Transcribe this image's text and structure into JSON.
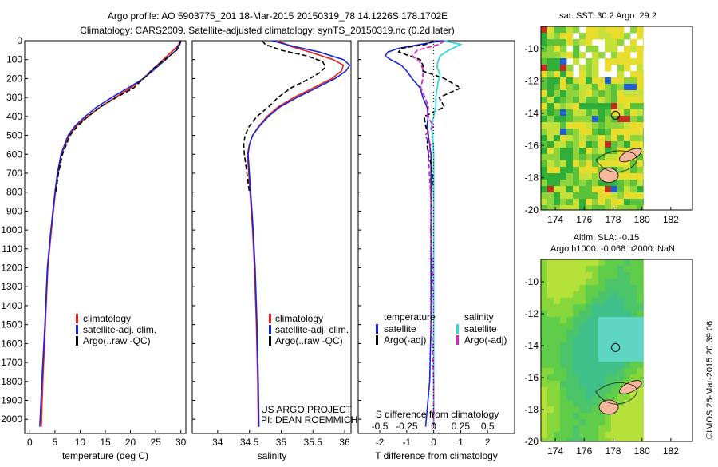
{
  "title_line1": "Argo profile: AO 5903775_201 18-Mar-2015 20150319_78 14.1226S 178.1702E",
  "title_line2": "Climatology: CARS2009. Satellite-adjusted climatology: synTS_20150319.nc (0.2d later)",
  "colors": {
    "climatology": "#e8201c",
    "satellite": "#1726d6",
    "argo": "#000000",
    "salinity_sat": "#33d6e0",
    "salinity_argo": "#d426c8"
  },
  "chart_data": [
    {
      "type": "line",
      "name": "temperature",
      "xlabel": "temperature (deg C)",
      "ylabel": "",
      "xlim": [
        -1,
        31
      ],
      "xticks": [
        0,
        5,
        10,
        15,
        20,
        25,
        30
      ],
      "ylim": [
        0,
        2075
      ],
      "yticks": [
        0,
        100,
        200,
        300,
        400,
        500,
        600,
        700,
        800,
        900,
        1000,
        1100,
        1200,
        1300,
        1400,
        1500,
        1600,
        1700,
        1800,
        1900,
        2000
      ],
      "legend": {
        "placement": "lower-middle",
        "entries": [
          "climatology",
          "satellite-adj. clim.",
          "Argo(..raw -QC)"
        ]
      },
      "series": [
        {
          "name": "climatology",
          "depth": [
            0,
            20,
            50,
            100,
            150,
            200,
            250,
            300,
            350,
            400,
            450,
            500,
            600,
            700,
            800,
            900,
            1000,
            1200,
            1500,
            1800,
            2040
          ],
          "values": [
            29.8,
            29.6,
            28.5,
            26.5,
            24.5,
            22.5,
            20.0,
            17.0,
            14.0,
            11.5,
            9.3,
            7.8,
            6.3,
            5.6,
            5.1,
            4.7,
            4.3,
            3.6,
            3.1,
            2.6,
            2.3
          ]
        },
        {
          "name": "satellite-adj. clim.",
          "depth": [
            0,
            20,
            50,
            100,
            150,
            200,
            250,
            300,
            350,
            400,
            450,
            500,
            600,
            700,
            800,
            900,
            1000,
            1200,
            1500,
            1800,
            2040
          ],
          "values": [
            29.9,
            29.7,
            29.0,
            27.0,
            24.8,
            22.6,
            19.5,
            16.3,
            13.3,
            11.0,
            9.0,
            7.6,
            6.2,
            5.5,
            5.0,
            4.6,
            4.2,
            3.5,
            3.0,
            2.4,
            2.0
          ]
        },
        {
          "name": "Argo(..raw -QC)",
          "depth": [
            0,
            20,
            50,
            100,
            150,
            200,
            250,
            300,
            350,
            400,
            450,
            500,
            600,
            700,
            800
          ],
          "values": [
            30.0,
            29.8,
            29.2,
            26.8,
            24.4,
            22.6,
            20.6,
            17.2,
            14.0,
            11.6,
            9.5,
            8.0,
            6.5,
            5.7,
            5.2
          ]
        }
      ]
    },
    {
      "type": "line",
      "name": "salinity",
      "xlabel": "salinity",
      "ylabel": "",
      "xlim": [
        33.6,
        36.1
      ],
      "xticks": [
        34,
        34.5,
        35,
        35.5,
        36
      ],
      "ylim": [
        0,
        2075
      ],
      "legend": {
        "placement": "lower-middle",
        "entries": [
          "climatology",
          "satellite-adj. clim.",
          "Argo(..raw -QC)"
        ]
      },
      "series": [
        {
          "name": "climatology",
          "depth": [
            0,
            30,
            60,
            100,
            130,
            160,
            200,
            250,
            300,
            350,
            400,
            450,
            500,
            550,
            600,
            650,
            700,
            800,
            900,
            1000,
            1200,
            1500,
            1800,
            2040
          ],
          "values": [
            34.95,
            35.15,
            35.45,
            35.82,
            35.98,
            35.95,
            35.8,
            35.5,
            35.2,
            34.95,
            34.78,
            34.65,
            34.55,
            34.5,
            34.47,
            34.48,
            34.49,
            34.51,
            34.53,
            34.55,
            34.58,
            34.61,
            34.63,
            34.64
          ]
        },
        {
          "name": "satellite-adj. clim.",
          "depth": [
            0,
            30,
            60,
            100,
            130,
            160,
            200,
            250,
            300,
            350,
            400,
            450,
            500,
            550,
            600,
            650,
            700,
            800,
            900,
            1000,
            1200,
            1500,
            1800,
            2040
          ],
          "values": [
            34.85,
            35.2,
            35.6,
            35.98,
            36.08,
            36.02,
            35.85,
            35.55,
            35.25,
            34.98,
            34.8,
            34.66,
            34.55,
            34.5,
            34.48,
            34.49,
            34.5,
            34.52,
            34.54,
            34.56,
            34.59,
            34.62,
            34.64,
            34.65
          ]
        },
        {
          "name": "Argo(..raw -QC)",
          "depth": [
            0,
            20,
            50,
            80,
            110,
            140,
            170,
            200,
            250,
            300,
            350,
            400,
            450,
            500,
            550,
            600,
            650,
            700,
            800
          ],
          "values": [
            34.7,
            34.75,
            35.0,
            35.4,
            35.65,
            35.7,
            35.6,
            35.45,
            35.15,
            34.95,
            34.8,
            34.62,
            34.5,
            34.43,
            34.41,
            34.42,
            34.44,
            34.46,
            34.5
          ]
        }
      ]
    },
    {
      "type": "line",
      "name": "differences",
      "xlabel": "T difference from climatology",
      "xlabel_top": "S difference from climatology",
      "xlim": [
        -2.8,
        3.0
      ],
      "xticks": [
        -2,
        -1,
        0,
        1,
        2
      ],
      "xticks_top": [
        {
          "v": -0.5,
          "l": "-0.5"
        },
        {
          "v": -0.25,
          "l": "-0.25"
        },
        {
          "v": 0,
          "l": "0"
        },
        {
          "v": 0.25,
          "l": "0.25"
        },
        {
          "v": 0.5,
          "l": "0.5"
        }
      ],
      "s_scale": 4,
      "ylim": [
        0,
        2075
      ],
      "legend_t_title": "temperature",
      "legend_s_title": "salinity",
      "legend_t": [
        "satellite",
        "Argo(-adj)"
      ],
      "legend_s": [
        "satellite",
        "Argo(-adj)"
      ],
      "series": [
        {
          "name": "T satellite",
          "kind": "T",
          "depth": [
            0,
            20,
            40,
            60,
            80,
            100,
            130,
            160,
            200,
            250,
            300,
            350,
            400,
            450,
            500,
            600,
            700,
            800,
            1000,
            1200,
            1500,
            1800,
            2040
          ],
          "values": [
            0.3,
            -0.5,
            -1.3,
            -1.7,
            -1.8,
            -1.6,
            -1.2,
            -1.0,
            -0.8,
            -0.5,
            -0.4,
            -0.25,
            -0.2,
            -0.25,
            -0.2,
            -0.1,
            -0.1,
            -0.1,
            -0.1,
            -0.1,
            -0.1,
            -0.15,
            -0.3
          ]
        },
        {
          "name": "T Argo(-adj)",
          "kind": "T",
          "depth": [
            0,
            20,
            40,
            60,
            80,
            100,
            130,
            160,
            200,
            250,
            300,
            350,
            400,
            450,
            500,
            550,
            600,
            650,
            700,
            800
          ],
          "values": [
            0.0,
            -0.3,
            -1.2,
            -1.3,
            -0.9,
            -0.5,
            -0.4,
            -0.4,
            0.4,
            1.0,
            0.2,
            0.4,
            -0.35,
            -0.3,
            -0.2,
            -0.25,
            -0.2,
            -0.1,
            -0.05,
            0.0
          ]
        },
        {
          "name": "S satellite",
          "kind": "S",
          "depth": [
            0,
            20,
            50,
            80,
            110,
            140,
            180,
            220,
            260,
            300,
            350,
            400,
            450,
            500,
            600,
            700,
            800,
            1000,
            1200,
            1500,
            1800,
            2040
          ],
          "values": [
            0.1,
            0.25,
            0.14,
            0.06,
            0.04,
            0.03,
            0.06,
            0.04,
            0.03,
            0.02,
            0.02,
            0.0,
            -0.02,
            -0.01,
            0.0,
            0.0,
            0.0,
            0.0,
            0.0,
            0.0,
            0.0,
            0.0
          ]
        },
        {
          "name": "S Argo(-adj)",
          "kind": "S",
          "depth": [
            0,
            20,
            50,
            80,
            110,
            150,
            200,
            250,
            300,
            350,
            400,
            450,
            500,
            550,
            600,
            700,
            800,
            900,
            1000,
            1200,
            1500,
            1800,
            2040
          ],
          "values": [
            0.1,
            0.05,
            -0.15,
            -0.2,
            -0.13,
            -0.1,
            -0.1,
            -0.12,
            -0.08,
            -0.05,
            -0.06,
            0.0,
            -0.08,
            -0.03,
            -0.05,
            -0.04,
            -0.03,
            -0.02,
            -0.03,
            -0.01,
            -0.02,
            0.0,
            0.0
          ]
        }
      ]
    },
    {
      "type": "heatmap",
      "name": "sst_map",
      "title": "sat. SST: 30.2  Argo: 29.2",
      "xlim": [
        173,
        183.5
      ],
      "ylim": [
        -20,
        -8.6
      ],
      "xticks": [
        174,
        176,
        178,
        180,
        182
      ],
      "yticks": [
        -10,
        -12,
        -14,
        -16,
        -18,
        -20
      ],
      "argo_position": [
        178.17,
        -14.12
      ],
      "data_east_limit": 180.1
    },
    {
      "type": "heatmap",
      "name": "sla_map",
      "title_line1": "Altim. SLA: -0.15",
      "title_line2": "Argo h1000: -0.068 h2000: NaN",
      "xlim": [
        173,
        183.5
      ],
      "ylim": [
        -20,
        -8.6
      ],
      "xticks": [
        174,
        176,
        178,
        180,
        182
      ],
      "yticks": [
        -10,
        -12,
        -14,
        -16,
        -18,
        -20
      ],
      "argo_position": [
        178.17,
        -14.12
      ],
      "data_east_limit": 180.1
    }
  ],
  "panel_text": {
    "project_line1": "US ARGO PROJECT",
    "project_line2": "PI: DEAN ROEMMICH"
  },
  "timestamp": "©IMOS 26-Mar-2015 20:39:06"
}
